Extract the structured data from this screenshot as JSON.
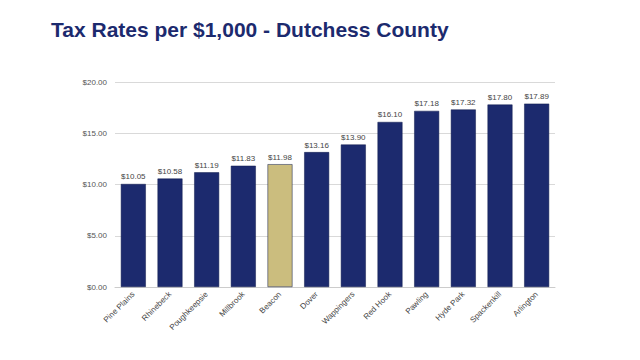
{
  "chart_data": {
    "type": "bar",
    "title": "Tax Rates per $1,000 - Dutchess County",
    "categories": [
      "Pine Plains",
      "Rhinebeck",
      "Poughkeepsie",
      "Millbrook",
      "Beacon",
      "Dover",
      "Wappingers",
      "Red Hook",
      "Pawling",
      "Hyde Park",
      "Spackenkill",
      "Arlington"
    ],
    "values": [
      10.05,
      10.58,
      11.19,
      11.83,
      11.98,
      13.16,
      13.9,
      16.1,
      17.18,
      17.32,
      17.8,
      17.89
    ],
    "value_labels": [
      "$10.05",
      "$10.58",
      "$11.19",
      "$11.83",
      "$11.98",
      "$13.16",
      "$13.90",
      "$16.10",
      "$17.18",
      "$17.32",
      "$17.80",
      "$17.89"
    ],
    "colors": [
      "#1c2a6e",
      "#1c2a6e",
      "#1c2a6e",
      "#1c2a6e",
      "#cbbd7e",
      "#1c2a6e",
      "#1c2a6e",
      "#1c2a6e",
      "#1c2a6e",
      "#1c2a6e",
      "#1c2a6e",
      "#1c2a6e"
    ],
    "ylim": [
      0,
      20
    ],
    "yticks": [
      {
        "value": 0,
        "label": "$0.00"
      },
      {
        "value": 5,
        "label": "$5.00"
      },
      {
        "value": 10,
        "label": "$10.00"
      },
      {
        "value": 15,
        "label": "$15.00"
      },
      {
        "value": 20,
        "label": "$20.00"
      }
    ],
    "grid": true,
    "data_labels": true
  }
}
